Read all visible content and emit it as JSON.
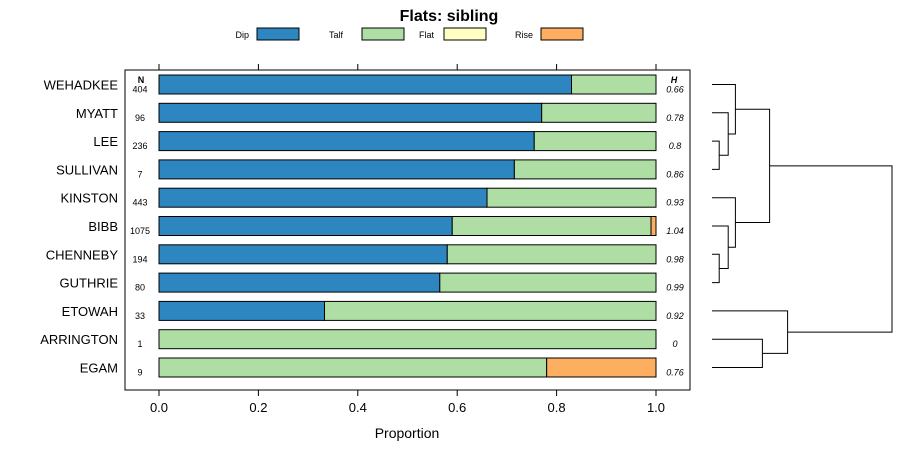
{
  "chart_data": {
    "type": "bar",
    "orientation": "horizontal",
    "stacked": true,
    "title": "Flats: sibling",
    "xlabel": "Proportion",
    "ylabel": "",
    "xlim": [
      -0.07,
      1.07
    ],
    "xticks": [
      0.0,
      0.2,
      0.4,
      0.6,
      0.8,
      1.0
    ],
    "xtick_labels": [
      "0.0",
      "0.2",
      "0.4",
      "0.6",
      "0.8",
      "1.0"
    ],
    "n_header": "N",
    "h_header": "H",
    "legend": [
      {
        "name": "Dip",
        "color": "#2e86c1"
      },
      {
        "name": "Talf",
        "color": "#aedea4"
      },
      {
        "name": "Flat",
        "color": "#ffffc4"
      },
      {
        "name": "Rise",
        "color": "#fdae61"
      }
    ],
    "legend_position": "top",
    "categories": [
      "WEHADKEE",
      "MYATT",
      "LEE",
      "SULLIVAN",
      "KINSTON",
      "BIBB",
      "CHENNEBY",
      "GUTHRIE",
      "ETOWAH",
      "ARRINGTON",
      "EGAM"
    ],
    "n": [
      "404",
      "96",
      "236",
      "7",
      "443",
      "1075",
      "194",
      "80",
      "33",
      "1",
      "9"
    ],
    "h": [
      "0.66",
      "0.78",
      "0.8",
      "0.86",
      "0.93",
      "1.04",
      "0.98",
      "0.99",
      "0.92",
      "0",
      "0.76"
    ],
    "series": [
      {
        "name": "Dip",
        "values": [
          0.83,
          0.77,
          0.755,
          0.715,
          0.66,
          0.59,
          0.58,
          0.565,
          0.333,
          0.0,
          0.0
        ]
      },
      {
        "name": "Talf",
        "values": [
          0.17,
          0.23,
          0.245,
          0.285,
          0.34,
          0.4,
          0.42,
          0.435,
          0.667,
          1.0,
          0.78
        ]
      },
      {
        "name": "Flat",
        "values": [
          0,
          0,
          0,
          0,
          0,
          0,
          0,
          0,
          0,
          0,
          0
        ]
      },
      {
        "name": "Rise",
        "values": [
          0,
          0,
          0,
          0,
          0,
          0.01,
          0,
          0,
          0,
          0,
          0.22
        ]
      }
    ],
    "dendrogram": {
      "description": "hierarchical clustering of the row order",
      "merges": [
        {
          "a": "SULLIVAN",
          "b": "LEE",
          "height": 0.04
        },
        {
          "a": "SULLIVAN+LEE",
          "b": "MYATT",
          "height": 0.09
        },
        {
          "a": "GUTHRIE",
          "b": "CHENNEBY",
          "height": 0.04
        },
        {
          "a": "GUTHRIE+CHENNEBY",
          "b": "BIBB",
          "height": 0.09
        },
        {
          "a": "SULLIVAN+LEE+MYATT",
          "b": "WEHADKEE",
          "height": 0.13
        },
        {
          "a": "GUTHRIE+CHENNEBY+BIBB",
          "b": "KINSTON",
          "height": 0.13
        },
        {
          "a": "ARRINGTON",
          "b": "EGAM",
          "height": 0.28
        },
        {
          "a": "group1",
          "b": "group2",
          "height": 0.32
        },
        {
          "a": "ARRINGTON+EGAM",
          "b": "ETOWAH",
          "height": 0.42
        },
        {
          "a": "all-upper",
          "b": "lower",
          "height": 1.0
        }
      ]
    }
  }
}
